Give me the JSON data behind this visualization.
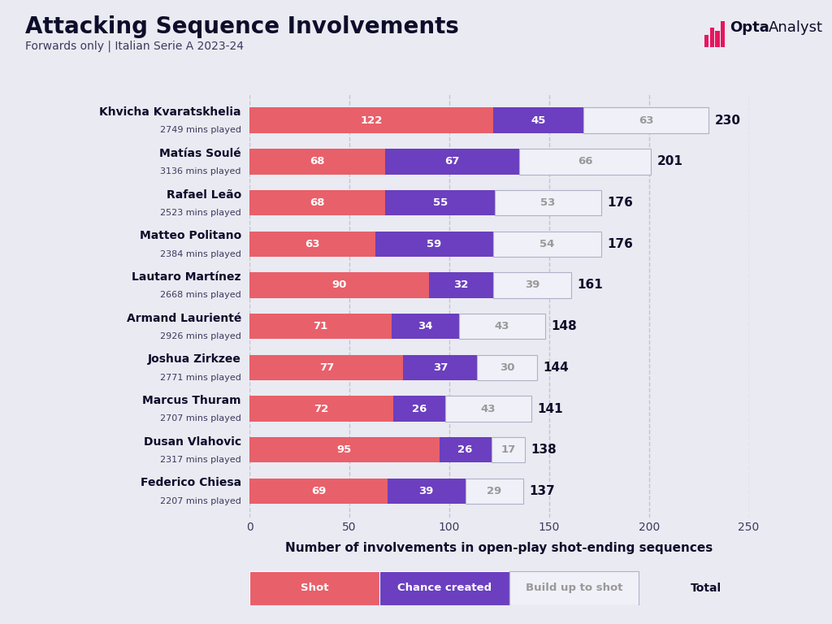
{
  "title": "Attacking Sequence Involvements",
  "subtitle": "Forwards only | Italian Serie A 2023-24",
  "xlabel": "Number of involvements in open-play shot-ending sequences",
  "players": [
    {
      "name": "Khvicha Kvaratskhelia",
      "mins": "2749 mins played",
      "shot": 122,
      "chance": 45,
      "buildup": 63,
      "total": 230
    },
    {
      "name": "Matías Soulé",
      "mins": "3136 mins played",
      "shot": 68,
      "chance": 67,
      "buildup": 66,
      "total": 201
    },
    {
      "name": "Rafael Leão",
      "mins": "2523 mins played",
      "shot": 68,
      "chance": 55,
      "buildup": 53,
      "total": 176
    },
    {
      "name": "Matteo Politano",
      "mins": "2384 mins played",
      "shot": 63,
      "chance": 59,
      "buildup": 54,
      "total": 176
    },
    {
      "name": "Lautaro Martínez",
      "mins": "2668 mins played",
      "shot": 90,
      "chance": 32,
      "buildup": 39,
      "total": 161
    },
    {
      "name": "Armand Laurienté",
      "mins": "2926 mins played",
      "shot": 71,
      "chance": 34,
      "buildup": 43,
      "total": 148
    },
    {
      "name": "Joshua Zirkzee",
      "mins": "2771 mins played",
      "shot": 77,
      "chance": 37,
      "buildup": 30,
      "total": 144
    },
    {
      "name": "Marcus Thuram",
      "mins": "2707 mins played",
      "shot": 72,
      "chance": 26,
      "buildup": 43,
      "total": 141
    },
    {
      "name": "Dusan Vlahovic",
      "mins": "2317 mins played",
      "shot": 95,
      "chance": 26,
      "buildup": 17,
      "total": 138
    },
    {
      "name": "Federico Chiesa",
      "mins": "2207 mins played",
      "shot": 69,
      "chance": 39,
      "buildup": 29,
      "total": 137
    }
  ],
  "color_shot": "#e8606a",
  "color_chance": "#6b3fbf",
  "color_buildup": "#f0f0f8",
  "color_bg": "#eaeaf2",
  "color_title": "#0d0d2b",
  "color_subtitle": "#3a3a5e",
  "bar_text_color_shot": "#ffffff",
  "bar_text_color_chance": "#ffffff",
  "bar_text_color_buildup": "#999999",
  "total_text_color": "#0d0d2b",
  "xlim": [
    0,
    250
  ],
  "xticks": [
    0,
    50,
    100,
    150,
    200,
    250
  ],
  "legend_labels": [
    "Shot",
    "Chance created",
    "Build up to shot",
    "Total"
  ],
  "bar_height": 0.62,
  "opta_logo_color": "#e8155e",
  "grid_color": "#c0c0d0"
}
